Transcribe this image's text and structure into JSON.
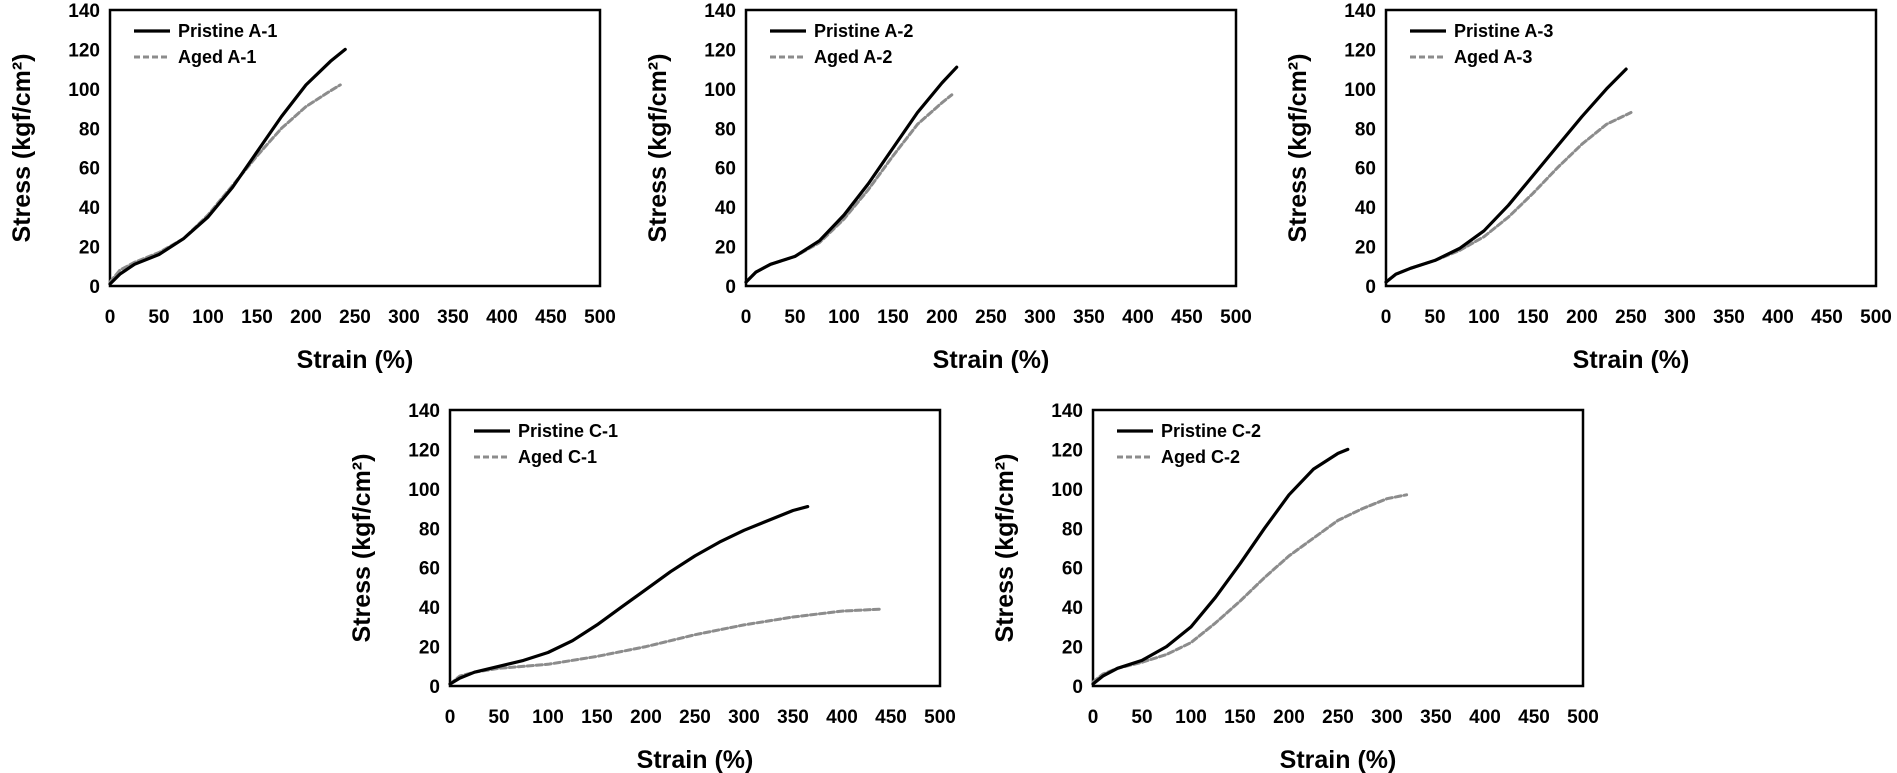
{
  "colors": {
    "pristine": "#000000",
    "aged": "#8c8c8c",
    "frame": "#000000"
  },
  "chart_data": [
    {
      "type": "line",
      "xlabel": "Strain (%)",
      "ylabel": "Stress (kgf/cm²)",
      "xlim": [
        0,
        500
      ],
      "ylim": [
        0,
        140
      ],
      "xticks": [
        0,
        50,
        100,
        150,
        200,
        250,
        300,
        350,
        400,
        450,
        500
      ],
      "yticks": [
        0,
        20,
        40,
        60,
        80,
        100,
        120,
        140
      ],
      "grid": false,
      "legend_position": "top-left",
      "series": [
        {
          "name": "Pristine A-1",
          "style": "solid",
          "x": [
            0,
            10,
            25,
            50,
            75,
            100,
            125,
            150,
            175,
            200,
            225,
            240
          ],
          "y": [
            1,
            6,
            11,
            16,
            24,
            35,
            50,
            68,
            86,
            102,
            114,
            120
          ]
        },
        {
          "name": "Aged A-1",
          "style": "dotted",
          "x": [
            0,
            10,
            25,
            50,
            75,
            100,
            125,
            150,
            175,
            200,
            225,
            235
          ],
          "y": [
            2,
            8,
            12,
            17,
            24,
            36,
            51,
            66,
            80,
            91,
            99,
            102
          ]
        }
      ]
    },
    {
      "type": "line",
      "xlabel": "Strain (%)",
      "ylabel": "Stress (kgf/cm²)",
      "xlim": [
        0,
        500
      ],
      "ylim": [
        0,
        140
      ],
      "xticks": [
        0,
        50,
        100,
        150,
        200,
        250,
        300,
        350,
        400,
        450,
        500
      ],
      "yticks": [
        0,
        20,
        40,
        60,
        80,
        100,
        120,
        140
      ],
      "grid": false,
      "legend_position": "top-left",
      "series": [
        {
          "name": "Pristine A-2",
          "style": "solid",
          "x": [
            0,
            10,
            25,
            50,
            75,
            100,
            125,
            150,
            175,
            200,
            215
          ],
          "y": [
            2,
            7,
            11,
            15,
            23,
            36,
            52,
            70,
            88,
            103,
            111
          ]
        },
        {
          "name": "Aged A-2",
          "style": "dotted",
          "x": [
            0,
            10,
            25,
            50,
            75,
            100,
            125,
            150,
            175,
            200,
            210
          ],
          "y": [
            2,
            7,
            11,
            15,
            22,
            34,
            49,
            66,
            82,
            93,
            97
          ]
        }
      ]
    },
    {
      "type": "line",
      "xlabel": "Strain (%)",
      "ylabel": "Stress (kgf/cm²)",
      "xlim": [
        0,
        500
      ],
      "ylim": [
        0,
        140
      ],
      "xticks": [
        0,
        50,
        100,
        150,
        200,
        250,
        300,
        350,
        400,
        450,
        500
      ],
      "yticks": [
        0,
        20,
        40,
        60,
        80,
        100,
        120,
        140
      ],
      "grid": false,
      "legend_position": "top-left",
      "series": [
        {
          "name": "Pristine A-3",
          "style": "solid",
          "x": [
            0,
            10,
            25,
            50,
            75,
            100,
            125,
            150,
            175,
            200,
            225,
            245
          ],
          "y": [
            2,
            6,
            9,
            13,
            19,
            28,
            41,
            56,
            71,
            86,
            100,
            110
          ]
        },
        {
          "name": "Aged A-3",
          "style": "dotted",
          "x": [
            0,
            10,
            25,
            50,
            75,
            100,
            125,
            150,
            175,
            200,
            225,
            250
          ],
          "y": [
            2,
            6,
            9,
            13,
            18,
            25,
            35,
            47,
            60,
            72,
            82,
            88
          ]
        }
      ]
    },
    {
      "type": "line",
      "xlabel": "Strain (%)",
      "ylabel": "Stress (kgf/cm²)",
      "xlim": [
        0,
        500
      ],
      "ylim": [
        0,
        140
      ],
      "xticks": [
        0,
        50,
        100,
        150,
        200,
        250,
        300,
        350,
        400,
        450,
        500
      ],
      "yticks": [
        0,
        20,
        40,
        60,
        80,
        100,
        120,
        140
      ],
      "grid": false,
      "legend_position": "top-left",
      "series": [
        {
          "name": "Pristine C-1",
          "style": "solid",
          "x": [
            0,
            10,
            25,
            50,
            75,
            100,
            125,
            150,
            175,
            200,
            225,
            250,
            275,
            300,
            325,
            350,
            365
          ],
          "y": [
            1,
            4,
            7,
            10,
            13,
            17,
            23,
            31,
            40,
            49,
            58,
            66,
            73,
            79,
            84,
            89,
            91
          ]
        },
        {
          "name": "Aged C-1",
          "style": "dotted",
          "x": [
            0,
            10,
            25,
            50,
            100,
            150,
            200,
            250,
            300,
            350,
            400,
            440
          ],
          "y": [
            1,
            5,
            7,
            9,
            11,
            15,
            20,
            26,
            31,
            35,
            38,
            39
          ]
        }
      ]
    },
    {
      "type": "line",
      "xlabel": "Strain (%)",
      "ylabel": "Stress (kgf/cm²)",
      "xlim": [
        0,
        500
      ],
      "ylim": [
        0,
        140
      ],
      "xticks": [
        0,
        50,
        100,
        150,
        200,
        250,
        300,
        350,
        400,
        450,
        500
      ],
      "yticks": [
        0,
        20,
        40,
        60,
        80,
        100,
        120,
        140
      ],
      "grid": false,
      "legend_position": "top-left",
      "series": [
        {
          "name": "Pristine C-2",
          "style": "solid",
          "x": [
            0,
            10,
            25,
            50,
            75,
            100,
            125,
            150,
            175,
            200,
            225,
            250,
            260
          ],
          "y": [
            1,
            5,
            9,
            13,
            20,
            30,
            45,
            62,
            80,
            97,
            110,
            118,
            120
          ]
        },
        {
          "name": "Aged C-2",
          "style": "dotted",
          "x": [
            0,
            10,
            25,
            50,
            75,
            100,
            125,
            150,
            175,
            200,
            225,
            250,
            275,
            300,
            320
          ],
          "y": [
            2,
            6,
            9,
            12,
            16,
            22,
            32,
            43,
            55,
            66,
            75,
            84,
            90,
            95,
            97
          ]
        }
      ]
    }
  ]
}
